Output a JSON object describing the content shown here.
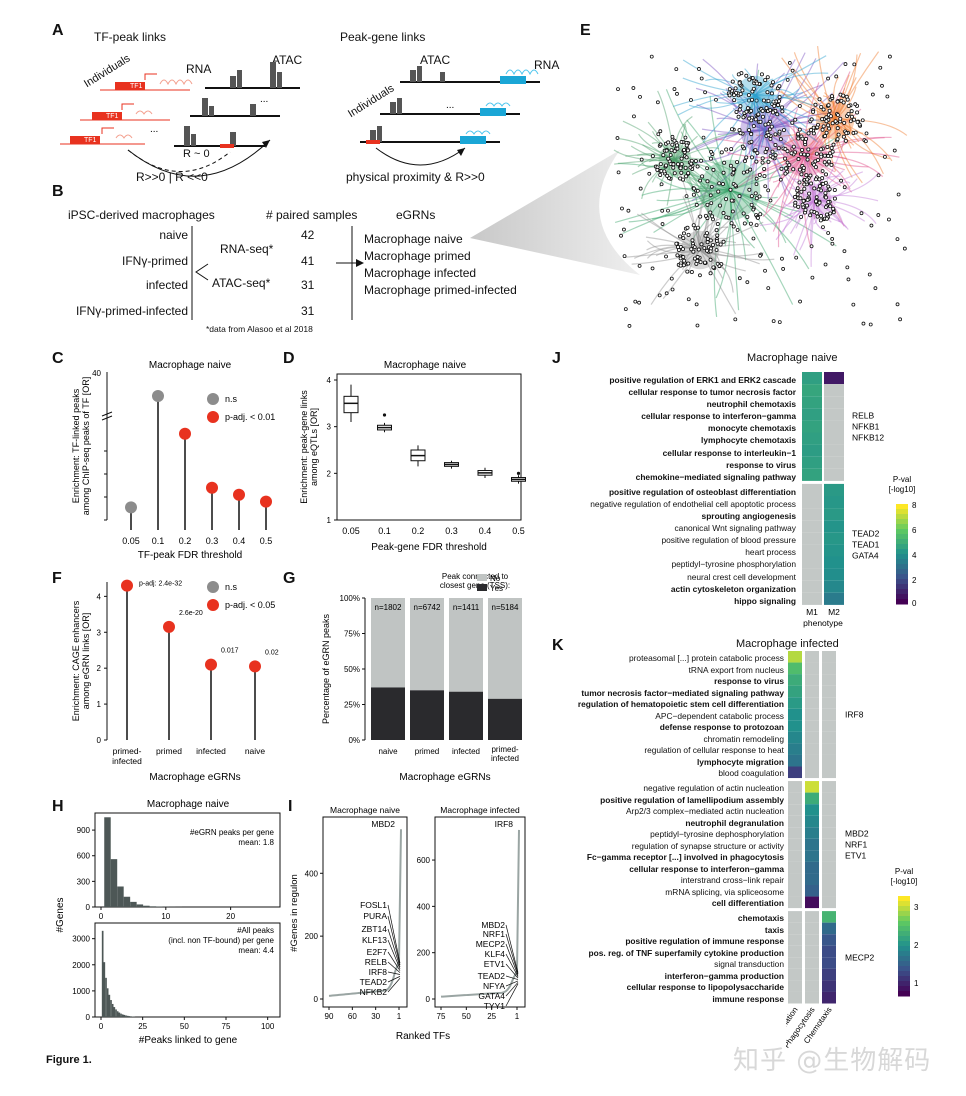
{
  "figure_caption": "Figure 1.",
  "watermark": "知乎 @生物解码",
  "panels": {
    "A": "A",
    "B": "B",
    "C": "C",
    "D": "D",
    "E": "E",
    "F": "F",
    "G": "G",
    "H": "H",
    "I": "I",
    "J": "J",
    "K": "K"
  },
  "panelA": {
    "left_title": "TF-peak links",
    "right_title": "Peak-gene links",
    "rna": "RNA",
    "atac": "ATAC",
    "individuals": "Individuals",
    "tf1": "TF1",
    "gene1": "gene 1",
    "dots": "...",
    "r0": "R ~ 0",
    "left_caption": "R>>0 | R <<0",
    "right_caption": "physical proximity & R>>0"
  },
  "panelB": {
    "header_left": "iPSC-derived macrophages",
    "header_mid": "# paired samples",
    "header_right": "eGRNs",
    "conditions": [
      "naive",
      "IFNγ-primed",
      "infected",
      "IFNγ-primed-infected"
    ],
    "assays": [
      "RNA-seq*",
      "ATAC-seq*"
    ],
    "counts": [
      "42",
      "41",
      "31",
      "31"
    ],
    "egrns": [
      "Macrophage naive",
      "Macrophage primed",
      "Macrophage infected",
      "Macrophage primed-infected"
    ],
    "footnote": "*data from Alasoo et al 2018"
  },
  "chart_data": [
    {
      "id": "C",
      "type": "scatter",
      "style": "lollipop",
      "title": "Macrophage naive",
      "xlabel": "TF-peak FDR threshold",
      "ylabel": "Enrichment: TF-linked peaks among ChIP-seq peaks of TF [OR]",
      "categories": [
        "0.05",
        "0.1",
        "0.2",
        "0.3",
        "0.4",
        "0.5"
      ],
      "values": [
        1.1,
        36,
        7.5,
        2.8,
        2.2,
        1.6
      ],
      "significant": [
        false,
        false,
        true,
        true,
        true,
        true
      ],
      "y_ticks": [
        "0",
        "2",
        "4",
        "6",
        "40"
      ],
      "axis_break": true,
      "legend": [
        "n.s",
        "p-adj. < 0.01"
      ]
    },
    {
      "id": "D",
      "type": "bar",
      "style": "boxplot",
      "title": "Macrophage naive",
      "xlabel": "Peak-gene FDR threshold",
      "ylabel": "Enrichment: peak-gene links among eQTLs [OR]",
      "categories": [
        "0.05",
        "0.1",
        "0.2",
        "0.3",
        "0.4",
        "0.5"
      ],
      "boxes": [
        {
          "min": 3.1,
          "q1": 3.3,
          "median": 3.5,
          "q3": 3.65,
          "max": 3.9
        },
        {
          "min": 2.88,
          "q1": 2.93,
          "median": 2.98,
          "q3": 3.03,
          "max": 3.08,
          "outliers": [
            3.25
          ]
        },
        {
          "min": 2.15,
          "q1": 2.27,
          "median": 2.38,
          "q3": 2.5,
          "max": 2.6
        },
        {
          "min": 2.1,
          "q1": 2.15,
          "median": 2.19,
          "q3": 2.23,
          "max": 2.27
        },
        {
          "min": 1.9,
          "q1": 1.96,
          "median": 2.01,
          "q3": 2.06,
          "max": 2.12
        },
        {
          "min": 1.78,
          "q1": 1.83,
          "median": 1.87,
          "q3": 1.91,
          "max": 1.96,
          "outliers": [
            2.0
          ]
        }
      ],
      "ylim": [
        1,
        4
      ]
    },
    {
      "id": "F",
      "type": "scatter",
      "style": "lollipop",
      "xlabel": "Macrophage eGRNs",
      "ylabel": "Enrichment: CAGE enhancers among eGRN links [OR]",
      "categories": [
        "primed-infected",
        "primed",
        "infected",
        "naive"
      ],
      "values": [
        4.3,
        3.15,
        2.1,
        2.05
      ],
      "annotations": [
        "p-adj: 2.4e-32",
        "2.6e-20",
        "0.017",
        "0.02"
      ],
      "ylim": [
        0,
        4.4
      ],
      "legend": [
        "n.s",
        "p-adj. < 0.05"
      ]
    },
    {
      "id": "G",
      "type": "bar",
      "style": "stacked-percent",
      "xlabel": "Macrophage eGRNs",
      "ylabel": "Percentage of eGRN peaks",
      "legend_title": "Peak connected to closest gene (TSS):",
      "categories": [
        "naive",
        "primed",
        "infected",
        "primed-infected"
      ],
      "series": [
        {
          "name": "Yes",
          "values": [
            37,
            35,
            34,
            29
          ]
        },
        {
          "name": "No",
          "values": [
            63,
            65,
            66,
            71
          ]
        }
      ],
      "n_labels": [
        "n=1802",
        "n=6742",
        "n=1411",
        "n=5184"
      ],
      "y_ticks": [
        "0%",
        "25%",
        "50%",
        "75%",
        "100%"
      ]
    },
    {
      "id": "H-top",
      "type": "bar",
      "style": "histogram",
      "title": "Macrophage naive",
      "annotation": [
        "#eGRN peaks per gene",
        "mean: 1.8"
      ],
      "x": [
        1,
        2,
        3,
        4,
        5,
        6,
        7,
        8,
        9,
        10,
        11,
        12
      ],
      "values": [
        1050,
        560,
        240,
        120,
        60,
        30,
        15,
        8,
        5,
        3,
        2,
        1
      ],
      "x_ticks": [
        "0",
        "10",
        "20"
      ],
      "y_ticks": [
        "0",
        "300",
        "600",
        "900"
      ],
      "ylabel": "#Genes"
    },
    {
      "id": "H-bottom",
      "type": "bar",
      "style": "histogram",
      "annotation": [
        "#All peaks",
        "(incl. non TF-bound) per gene",
        "mean: 4.4"
      ],
      "x": [
        1,
        2,
        3,
        4,
        5,
        6,
        7,
        8,
        9,
        10,
        11,
        12,
        13,
        14,
        15,
        16,
        17,
        18,
        19,
        20
      ],
      "values": [
        3300,
        2100,
        1500,
        1100,
        850,
        650,
        500,
        380,
        290,
        220,
        170,
        130,
        100,
        80,
        60,
        45,
        35,
        25,
        18,
        12
      ],
      "x_ticks": [
        "0",
        "25",
        "50",
        "75",
        "100"
      ],
      "y_ticks": [
        "0",
        "1000",
        "2000",
        "3000"
      ],
      "xlabel": "#Peaks linked to gene"
    },
    {
      "id": "I-left",
      "type": "line",
      "title": "Macrophage naive",
      "xlabel": "Ranked TFs",
      "ylabel": "#Genes in regulon",
      "x_ticks": [
        "90",
        "60",
        "30",
        "1"
      ],
      "y_ticks": [
        "0",
        "200",
        "400"
      ],
      "labels": [
        "MBD2",
        "FOSL1",
        "PURA",
        "ZBT14",
        "KLF13",
        "E2F7",
        "RELB",
        "IRF8",
        "TEAD2",
        "NFKB2"
      ],
      "top_value": 540
    },
    {
      "id": "I-right",
      "type": "line",
      "title": "Macrophage infected",
      "x_ticks": [
        "75",
        "50",
        "25",
        "1"
      ],
      "y_ticks": [
        "0",
        "200",
        "400",
        "600"
      ],
      "labels": [
        "IRF8",
        "MBD2",
        "NRF1",
        "MECP2",
        "KLF4",
        "ETV1",
        "TEAD2",
        "NFYA",
        "GATA4",
        "TYY1"
      ],
      "top_value": 730
    },
    {
      "id": "J",
      "type": "heatmap",
      "title": "Macrophage naive",
      "columns": [
        "M1",
        "M2"
      ],
      "column_caption": "phenotype",
      "colorbar_title": "P-val [-log10]",
      "colorbar_ticks": [
        "8",
        "6",
        "4",
        "2",
        "0"
      ]
    },
    {
      "id": "K",
      "type": "heatmap",
      "title": "Macrophage infected",
      "columns": [
        "Inflammation",
        "Phagocytosis",
        "Chemotaxis"
      ],
      "colorbar_title": "P-val [-log10]",
      "colorbar_ticks": [
        "3",
        "2",
        "1"
      ]
    }
  ],
  "panelJ": {
    "groups": [
      {
        "tfs": [
          "RELB",
          "NFKB1",
          "NFKB12"
        ],
        "rows": [
          {
            "t": "positive regulation of ERK1 and ERK2 cascade",
            "b": true,
            "m1": 4.5,
            "m2": 0.6
          },
          {
            "t": "cellular response to tumor necrosis factor",
            "b": true,
            "m1": 4.7,
            "m2": 0
          },
          {
            "t": "neutrophil chemotaxis",
            "b": true,
            "m1": 4.6,
            "m2": 0
          },
          {
            "t": "cellular response to interferon−gamma",
            "b": true,
            "m1": 4.5,
            "m2": 0
          },
          {
            "t": "monocyte chemotaxis",
            "b": true,
            "m1": 4.6,
            "m2": 0
          },
          {
            "t": "lymphocyte chemotaxis",
            "b": true,
            "m1": 4.5,
            "m2": 0
          },
          {
            "t": "cellular response to interleukin−1",
            "b": true,
            "m1": 4.4,
            "m2": 0
          },
          {
            "t": "response to virus",
            "b": true,
            "m1": 4.5,
            "m2": 0
          },
          {
            "t": "chemokine−mediated signaling pathway",
            "b": true,
            "m1": 4.6,
            "m2": 0
          }
        ]
      },
      {
        "tfs": [
          "TEAD2",
          "TEAD1",
          "GATA4"
        ],
        "rows": [
          {
            "t": "positive regulation of osteoblast differentiation",
            "b": true,
            "m1": 0,
            "m2": 4.3
          },
          {
            "t": "negative regulation of endothelial cell apoptotic process",
            "b": false,
            "m1": 0,
            "m2": 4.2
          },
          {
            "t": "sprouting angiogenesis",
            "b": true,
            "m1": 0,
            "m2": 4.3
          },
          {
            "t": "canonical Wnt signaling pathway",
            "b": false,
            "m1": 0,
            "m2": 4.1
          },
          {
            "t": "positive regulation of blood pressure",
            "b": false,
            "m1": 0,
            "m2": 4.2
          },
          {
            "t": "heart process",
            "b": false,
            "m1": 0,
            "m2": 4.1
          },
          {
            "t": "peptidyl−tyrosine phosphorylation",
            "b": false,
            "m1": 0,
            "m2": 4.0
          },
          {
            "t": "neural crest cell development",
            "b": false,
            "m1": 0,
            "m2": 3.9
          },
          {
            "t": "actin cytoskeleton organization",
            "b": true,
            "m1": 0,
            "m2": 3.7
          },
          {
            "t": "hippo signaling",
            "b": true,
            "m1": 0,
            "m2": 3.3
          }
        ]
      }
    ]
  },
  "panelK": {
    "groups": [
      {
        "tfs": [
          "IRF8"
        ],
        "col": 0,
        "rows": [
          {
            "t": "proteasomal [...] protein catabolic process",
            "b": false,
            "v": 3.3
          },
          {
            "t": "tRNA export from nucleus",
            "b": false,
            "v": 2.8
          },
          {
            "t": "response to virus",
            "b": true,
            "v": 2.6
          },
          {
            "t": "tumor necrosis factor−mediated signaling pathway",
            "b": true,
            "v": 2.5
          },
          {
            "t": "regulation of hematopoietic stem cell differentiation",
            "b": true,
            "v": 2.4
          },
          {
            "t": "APC−dependent catabolic process",
            "b": false,
            "v": 2.3
          },
          {
            "t": "defense response to protozoan",
            "b": true,
            "v": 2.3
          },
          {
            "t": "chromatin remodeling",
            "b": false,
            "v": 2.2
          },
          {
            "t": "regulation of cellular response to heat",
            "b": false,
            "v": 2.1
          },
          {
            "t": "lymphocyte migration",
            "b": true,
            "v": 2.0
          },
          {
            "t": "blood coagulation",
            "b": false,
            "v": 1.5
          }
        ]
      },
      {
        "tfs": [
          "MBD2",
          "NRF1",
          "ETV1"
        ],
        "col": 1,
        "rows": [
          {
            "t": "negative regulation of actin nucleation",
            "b": false,
            "v": 3.4
          },
          {
            "t": "positive regulation of lamellipodium assembly",
            "b": true,
            "v": 2.6
          },
          {
            "t": "Arp2/3 complex−mediated actin nucleation",
            "b": false,
            "v": 2.3
          },
          {
            "t": "neutrophil degranulation",
            "b": true,
            "v": 2.2
          },
          {
            "t": "peptidyl−tyrosine dephosphorylation",
            "b": false,
            "v": 2.1
          },
          {
            "t": "regulation of synapse structure or activity",
            "b": false,
            "v": 2.0
          },
          {
            "t": "Fc−gamma receptor [...] involved in phagocytosis",
            "b": true,
            "v": 2.0
          },
          {
            "t": "cellular response to interferon−gamma",
            "b": true,
            "v": 1.9
          },
          {
            "t": "interstrand cross−link repair",
            "b": false,
            "v": 1.9
          },
          {
            "t": "mRNA splicing, via spliceosome",
            "b": false,
            "v": 1.8
          },
          {
            "t": "cell differentiation",
            "b": true,
            "v": 1.1
          }
        ]
      },
      {
        "tfs": [
          "MECP2"
        ],
        "col": 2,
        "rows": [
          {
            "t": "chemotaxis",
            "b": true,
            "v": 2.7
          },
          {
            "t": "taxis",
            "b": true,
            "v": 1.9
          },
          {
            "t": "positive regulation of immune response",
            "b": true,
            "v": 1.7
          },
          {
            "t": "pos. reg. of TNF superfamily cytokine production",
            "b": true,
            "v": 1.6
          },
          {
            "t": "signal transduction",
            "b": false,
            "v": 1.6
          },
          {
            "t": "interferon−gamma production",
            "b": true,
            "v": 1.5
          },
          {
            "t": "cellular response to lipopolysaccharide",
            "b": true,
            "v": 1.4
          },
          {
            "t": "immune response",
            "b": true,
            "v": 1.3
          }
        ]
      }
    ]
  }
}
